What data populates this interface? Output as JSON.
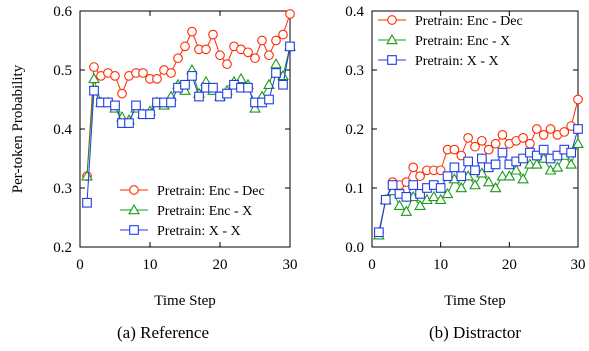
{
  "chart_data": [
    {
      "type": "line",
      "caption": "(a) Reference",
      "xlabel": "Time Step",
      "ylabel": "Per-token Probability",
      "xlim": [
        0,
        30
      ],
      "ylim": [
        0.2,
        0.6
      ],
      "xticks": [
        0,
        10,
        20,
        30
      ],
      "yticks": [
        0.2,
        0.3,
        0.4,
        0.5,
        0.6
      ],
      "ytick_labels": [
        "0.2",
        "0.3",
        "0.4",
        "0.5",
        "0.6"
      ],
      "grid": false,
      "legend_position": "bottom-right",
      "x": [
        1,
        2,
        3,
        4,
        5,
        6,
        7,
        8,
        9,
        10,
        11,
        12,
        13,
        14,
        15,
        16,
        17,
        18,
        19,
        20,
        21,
        22,
        23,
        24,
        25,
        26,
        27,
        28,
        29,
        30
      ],
      "series": [
        {
          "name": "Pretrain: Enc - Dec",
          "color": "#ff2a00",
          "marker": "circle",
          "values": [
            0.32,
            0.505,
            0.49,
            0.495,
            0.49,
            0.46,
            0.49,
            0.495,
            0.495,
            0.485,
            0.485,
            0.5,
            0.495,
            0.52,
            0.54,
            0.565,
            0.535,
            0.535,
            0.56,
            0.525,
            0.51,
            0.54,
            0.535,
            0.53,
            0.52,
            0.55,
            0.525,
            0.55,
            0.56,
            0.595
          ]
        },
        {
          "name": "Pretrain: Enc - X",
          "color": "#1a9a1a",
          "marker": "triangle",
          "values": [
            0.32,
            0.485,
            0.445,
            0.445,
            0.435,
            0.42,
            0.415,
            0.435,
            0.425,
            0.43,
            0.445,
            0.44,
            0.455,
            0.475,
            0.465,
            0.5,
            0.46,
            0.48,
            0.465,
            0.455,
            0.465,
            0.48,
            0.485,
            0.475,
            0.435,
            0.455,
            0.475,
            0.51,
            0.49,
            0.54
          ]
        },
        {
          "name": "Pretrain: X - X",
          "color": "#1f3de6",
          "marker": "square",
          "values": [
            0.275,
            0.465,
            0.445,
            0.445,
            0.44,
            0.41,
            0.41,
            0.44,
            0.425,
            0.425,
            0.445,
            0.445,
            0.445,
            0.47,
            0.475,
            0.49,
            0.455,
            0.47,
            0.47,
            0.455,
            0.46,
            0.475,
            0.47,
            0.47,
            0.445,
            0.445,
            0.45,
            0.495,
            0.475,
            0.54
          ]
        }
      ]
    },
    {
      "type": "line",
      "caption": "(b) Distractor",
      "xlabel": "Time Step",
      "ylabel": "",
      "xlim": [
        0,
        30
      ],
      "ylim": [
        0.0,
        0.4
      ],
      "xticks": [
        0,
        10,
        20,
        30
      ],
      "yticks": [
        0.0,
        0.1,
        0.2,
        0.3,
        0.4
      ],
      "ytick_labels": [
        "0.0",
        "0.1",
        "0.2",
        "0.3",
        "0.4"
      ],
      "grid": false,
      "legend_position": "top-left",
      "x": [
        1,
        2,
        3,
        4,
        5,
        6,
        7,
        8,
        9,
        10,
        11,
        12,
        13,
        14,
        15,
        16,
        17,
        18,
        19,
        20,
        21,
        22,
        23,
        24,
        25,
        26,
        27,
        28,
        29,
        30
      ],
      "series": [
        {
          "name": "Pretrain: Enc - Dec",
          "color": "#ff2a00",
          "marker": "circle",
          "values": [
            0.025,
            0.08,
            0.11,
            0.105,
            0.11,
            0.135,
            0.12,
            0.13,
            0.13,
            0.13,
            0.165,
            0.165,
            0.155,
            0.185,
            0.17,
            0.18,
            0.165,
            0.175,
            0.19,
            0.175,
            0.18,
            0.185,
            0.175,
            0.2,
            0.19,
            0.2,
            0.19,
            0.195,
            0.205,
            0.25
          ]
        },
        {
          "name": "Pretrain: Enc - X",
          "color": "#1a9a1a",
          "marker": "triangle",
          "values": [
            0.02,
            0.08,
            0.095,
            0.07,
            0.06,
            0.085,
            0.07,
            0.08,
            0.085,
            0.08,
            0.09,
            0.115,
            0.1,
            0.12,
            0.105,
            0.125,
            0.11,
            0.1,
            0.12,
            0.12,
            0.13,
            0.115,
            0.14,
            0.14,
            0.15,
            0.13,
            0.135,
            0.155,
            0.14,
            0.175
          ]
        },
        {
          "name": "Pretrain: X - X",
          "color": "#1f3de6",
          "marker": "square",
          "values": [
            0.025,
            0.08,
            0.105,
            0.09,
            0.085,
            0.105,
            0.09,
            0.1,
            0.105,
            0.1,
            0.12,
            0.135,
            0.12,
            0.145,
            0.13,
            0.15,
            0.135,
            0.14,
            0.16,
            0.14,
            0.145,
            0.15,
            0.16,
            0.155,
            0.165,
            0.15,
            0.155,
            0.165,
            0.16,
            0.2
          ]
        }
      ]
    }
  ]
}
